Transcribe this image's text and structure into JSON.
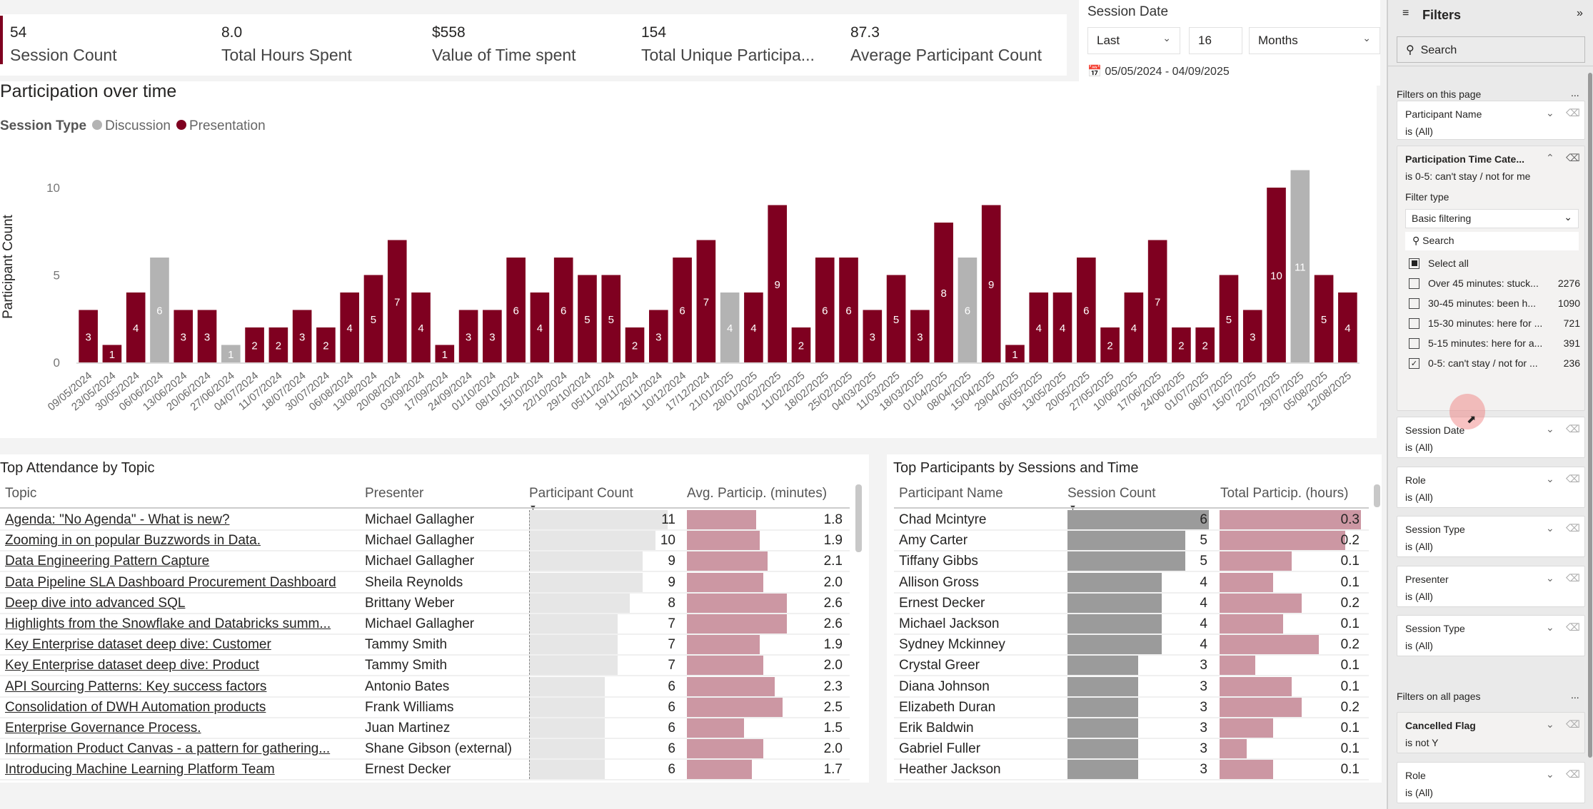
{
  "kpis": [
    {
      "value": "54",
      "label": "Session Count"
    },
    {
      "value": "8.0",
      "label": "Total Hours Spent"
    },
    {
      "value": "$558",
      "label": "Value of Time spent"
    },
    {
      "value": "154",
      "label": "Total Unique Participa..."
    },
    {
      "value": "87.3",
      "label": "Average Participant Count"
    }
  ],
  "slicer": {
    "title": "Session Date",
    "relative": "Last",
    "count": "16",
    "unit": "Months",
    "range": "05/05/2024 - 04/09/2025"
  },
  "colors": {
    "presentation": "#7f0020",
    "discussion": "#b3b3b3",
    "count_bar": "#e6e6e6",
    "pink_bar": "#cc97a3",
    "session_bar": "#9b9b9b",
    "accent": "#7f0020"
  },
  "chart_data": {
    "type": "bar",
    "title": "Participation over time",
    "legend_title": "Session Type",
    "legend": [
      "Discussion",
      "Presentation"
    ],
    "ylabel": "Participant Count",
    "xlabel": "",
    "ylim": [
      0,
      11
    ],
    "yticks": [
      0,
      5,
      10
    ],
    "categories": [
      "09/05/2024",
      "23/05/2024",
      "30/05/2024",
      "06/06/2024",
      "13/06/2024",
      "20/06/2024",
      "27/06/2024",
      "04/07/2024",
      "11/07/2024",
      "18/07/2024",
      "30/07/2024",
      "06/08/2024",
      "13/08/2024",
      "20/08/2024",
      "03/09/2024",
      "17/09/2024",
      "24/09/2024",
      "01/10/2024",
      "08/10/2024",
      "15/10/2024",
      "22/10/2024",
      "29/10/2024",
      "05/11/2024",
      "19/11/2024",
      "26/11/2024",
      "10/12/2024",
      "17/12/2024",
      "21/01/2025",
      "28/01/2025",
      "04/02/2025",
      "11/02/2025",
      "18/02/2025",
      "25/02/2025",
      "04/03/2025",
      "11/03/2025",
      "18/03/2025",
      "01/04/2025",
      "08/04/2025",
      "15/04/2025",
      "29/04/2025",
      "06/05/2025",
      "13/05/2025",
      "20/05/2025",
      "27/05/2025",
      "10/06/2025",
      "17/06/2025",
      "24/06/2025",
      "01/07/2025",
      "08/07/2025",
      "15/07/2025",
      "22/07/2025",
      "29/07/2025",
      "05/08/2025",
      "12/08/2025"
    ],
    "values": [
      3,
      1,
      4,
      6,
      3,
      3,
      1,
      2,
      2,
      3,
      2,
      4,
      5,
      7,
      4,
      1,
      3,
      3,
      6,
      4,
      6,
      5,
      5,
      2,
      3,
      6,
      7,
      4,
      4,
      9,
      2,
      6,
      6,
      3,
      5,
      3,
      8,
      6,
      9,
      1,
      4,
      4,
      6,
      2,
      4,
      7,
      2,
      2,
      5,
      3,
      10,
      11,
      5,
      4
    ],
    "session_type": [
      "P",
      "P",
      "P",
      "D",
      "P",
      "P",
      "D",
      "P",
      "P",
      "P",
      "P",
      "P",
      "P",
      "P",
      "P",
      "P",
      "P",
      "P",
      "P",
      "P",
      "P",
      "P",
      "P",
      "P",
      "P",
      "P",
      "P",
      "D",
      "P",
      "P",
      "P",
      "P",
      "P",
      "P",
      "P",
      "P",
      "P",
      "D",
      "P",
      "P",
      "P",
      "P",
      "P",
      "P",
      "P",
      "P",
      "P",
      "P",
      "P",
      "P",
      "P",
      "D",
      "P",
      "P"
    ]
  },
  "topics": {
    "title": "Top Attendance by Topic",
    "headers": [
      "Topic",
      "Presenter",
      "Participant Count",
      "Avg. Particip. (minutes)"
    ],
    "rows": [
      [
        "Agenda: \"No Agenda\" - What is new?",
        "Michael Gallagher",
        11,
        "1.8"
      ],
      [
        "Zooming in on popular Buzzwords in Data.",
        "Michael Gallagher",
        10,
        "1.9"
      ],
      [
        "Data Engineering Pattern Capture",
        "Michael Gallagher",
        9,
        "2.1"
      ],
      [
        "Data Pipeline SLA Dashboard Procurement Dashboard",
        "Sheila Reynolds",
        9,
        "2.0"
      ],
      [
        "Deep dive into advanced SQL",
        "Brittany Weber",
        8,
        "2.6"
      ],
      [
        "Highlights from the Snowflake and Databricks summ...",
        "Michael Gallagher",
        7,
        "2.6"
      ],
      [
        "Key Enterprise dataset deep dive: Customer",
        "Tammy Smith",
        7,
        "1.9"
      ],
      [
        "Key Enterprise dataset deep dive: Product",
        "Tammy Smith",
        7,
        "2.0"
      ],
      [
        "API Sourcing Patterns: Key success factors",
        "Antonio Bates",
        6,
        "2.3"
      ],
      [
        "Consolidation of DWH Automation products",
        "Frank Williams",
        6,
        "2.5"
      ],
      [
        "Enterprise Governance Process.",
        "Juan Martinez",
        6,
        "1.5"
      ],
      [
        "Information Product Canvas - a pattern for gathering...",
        "Shane Gibson (external)",
        6,
        "2.0"
      ],
      [
        "Introducing Machine Learning Platform Team",
        "Ernest Decker",
        6,
        "1.7"
      ]
    ]
  },
  "participants": {
    "title": "Top Participants by Sessions and Time",
    "headers": [
      "Participant Name",
      "Session Count",
      "Total Particip. (hours)"
    ],
    "rows": [
      [
        "Chad Mcintyre",
        6,
        "0.3",
        1.0
      ],
      [
        "Amy Carter",
        5,
        "0.2",
        0.89
      ],
      [
        "Tiffany Gibbs",
        5,
        "0.1",
        0.51
      ],
      [
        "Allison Gross",
        4,
        "0.1",
        0.38
      ],
      [
        "Ernest Decker",
        4,
        "0.2",
        0.58
      ],
      [
        "Michael Jackson",
        4,
        "0.1",
        0.45
      ],
      [
        "Sydney Mckinney",
        4,
        "0.2",
        0.7
      ],
      [
        "Crystal Greer",
        3,
        "0.1",
        0.25
      ],
      [
        "Diana Johnson",
        3,
        "0.1",
        0.51
      ],
      [
        "Elizabeth Duran",
        3,
        "0.2",
        0.58
      ],
      [
        "Erik Baldwin",
        3,
        "0.1",
        0.38
      ],
      [
        "Gabriel Fuller",
        3,
        "0.1",
        0.19
      ],
      [
        "Heather Jackson",
        3,
        "0.1",
        0.38
      ]
    ]
  },
  "filters": {
    "title": "Filters",
    "search": "Search",
    "on_page": "Filters on this page",
    "on_all": "Filters on all pages",
    "more": "...",
    "participant_name": {
      "name": "Participant Name",
      "value": "is (All)"
    },
    "time_cat": {
      "name": "Participation Time Cate...",
      "value": "is 0-5: can't stay / not for me",
      "filter_type_label": "Filter type",
      "filter_type": "Basic filtering",
      "search": "Search",
      "select_all": "Select all",
      "items": [
        {
          "label": "Over 45 minutes: stuck...",
          "count": "2276",
          "checked": false
        },
        {
          "label": "30-45 minutes: been h...",
          "count": "1090",
          "checked": false
        },
        {
          "label": "15-30 minutes: here for ...",
          "count": "721",
          "checked": false
        },
        {
          "label": "5-15 minutes: here for a...",
          "count": "391",
          "checked": false
        },
        {
          "label": "0-5: can't stay / not for ...",
          "count": "236",
          "checked": true
        }
      ]
    },
    "page_cards": [
      {
        "name": "Session Date",
        "value": "is (All)"
      },
      {
        "name": "Role",
        "value": "is (All)"
      },
      {
        "name": "Session Type",
        "value": "is (All)"
      },
      {
        "name": "Presenter",
        "value": "is (All)"
      },
      {
        "name": "Session Type",
        "value": "is (All)"
      }
    ],
    "all_cards": [
      {
        "name": "Cancelled Flag",
        "value": "is not Y",
        "bold": true
      },
      {
        "name": "Role",
        "value": "is (All)"
      }
    ]
  }
}
